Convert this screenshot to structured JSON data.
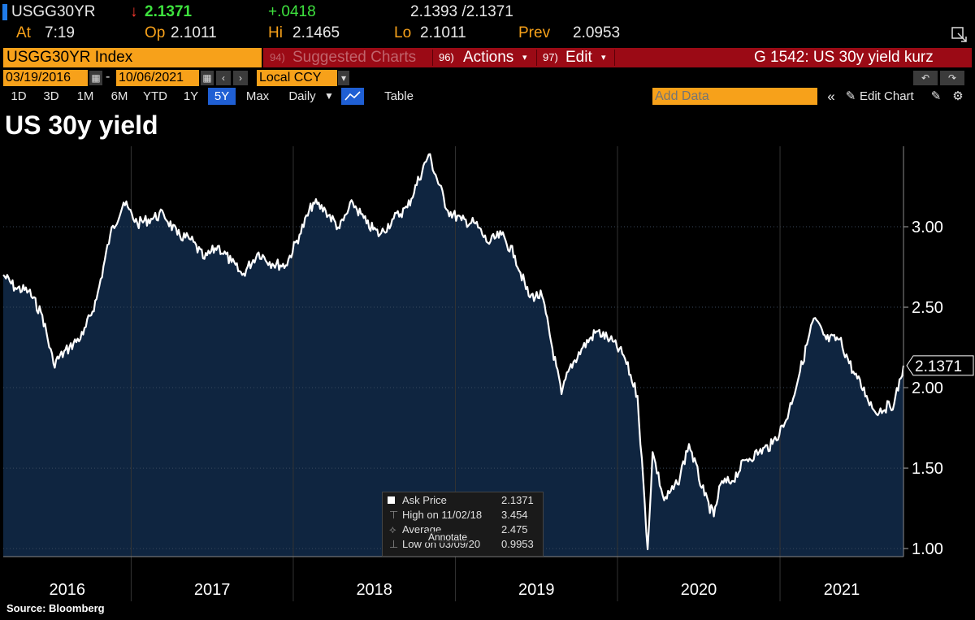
{
  "quote": {
    "ticker": "USGG30YR",
    "arrow": "↓",
    "last": "2.1371",
    "change": "+.0418",
    "bid_ask": "2.1393 /2.1371",
    "at_label": "At",
    "at_value": "7:19",
    "op_label": "Op",
    "op_value": "2.1011",
    "hi_label": "Hi",
    "hi_value": "2.1465",
    "lo_label": "Lo",
    "lo_value": "2.1011",
    "prev_label": "Prev",
    "prev_value": "2.0953"
  },
  "toolbar": {
    "security": "USGG30YR Index",
    "suggested_num": "94)",
    "suggested": "Suggested Charts",
    "actions_num": "96)",
    "actions": "Actions",
    "edit_num": "97)",
    "edit": "Edit",
    "chart_name": "G 1542: US 30y yield kurz",
    "start_date": "03/19/2016",
    "end_date": "10/06/2021",
    "dash": "-",
    "currency": "Local CCY",
    "ranges": [
      "1D",
      "3D",
      "1M",
      "6M",
      "YTD",
      "1Y",
      "5Y",
      "Max"
    ],
    "selected_range": "5Y",
    "periodicity": "Daily",
    "table": "Table",
    "add_data_placeholder": "Add Data",
    "edit_chart": "Edit Chart"
  },
  "legend": {
    "r1_label": "Ask Price",
    "r1_value": "2.1371",
    "r2_label": "High on 11/02/18",
    "r2_value": "3.454",
    "r3_label": "Average",
    "r3_value": "2.475",
    "r4_label": "Low on 03/09/20",
    "r4_value": "0.9953",
    "annotate": "Annotate"
  },
  "source": "Source: Bloomberg",
  "colors": {
    "orange": "#f7a11a",
    "red": "#9b0a15",
    "fill": "#0f2540",
    "line": "#ffffff"
  },
  "chart_data": {
    "type": "area",
    "title": "US 30y yield",
    "series": [
      {
        "name": "Ask Price",
        "x": [
          "2016-03-19",
          "2016-04-15",
          "2016-05-15",
          "2016-06-15",
          "2016-07-10",
          "2016-08-15",
          "2016-09-15",
          "2016-10-15",
          "2016-11-15",
          "2016-12-15",
          "2017-01-15",
          "2017-02-15",
          "2017-03-15",
          "2017-04-15",
          "2017-05-15",
          "2017-06-15",
          "2017-07-15",
          "2017-08-15",
          "2017-09-08",
          "2017-10-15",
          "2017-11-15",
          "2017-12-15",
          "2018-01-15",
          "2018-02-15",
          "2018-03-15",
          "2018-04-15",
          "2018-05-15",
          "2018-06-15",
          "2018-07-15",
          "2018-08-15",
          "2018-09-15",
          "2018-11-02",
          "2018-12-15",
          "2019-01-15",
          "2019-02-15",
          "2019-03-15",
          "2019-04-15",
          "2019-05-15",
          "2019-06-15",
          "2019-07-15",
          "2019-08-28",
          "2019-09-15",
          "2019-10-15",
          "2019-11-15",
          "2019-12-15",
          "2020-01-15",
          "2020-02-15",
          "2020-03-09",
          "2020-03-20",
          "2020-04-15",
          "2020-05-15",
          "2020-06-10",
          "2020-07-15",
          "2020-08-05",
          "2020-08-20",
          "2020-09-15",
          "2020-10-15",
          "2020-11-15",
          "2020-12-15",
          "2021-01-15",
          "2021-02-15",
          "2021-03-18",
          "2021-04-15",
          "2021-05-15",
          "2021-06-15",
          "2021-07-15",
          "2021-08-03",
          "2021-09-15",
          "2021-10-06"
        ],
        "values": [
          2.7,
          2.62,
          2.6,
          2.45,
          2.15,
          2.25,
          2.33,
          2.55,
          2.95,
          3.15,
          3.02,
          3.05,
          3.08,
          2.95,
          2.92,
          2.8,
          2.88,
          2.78,
          2.7,
          2.84,
          2.77,
          2.76,
          2.95,
          3.15,
          3.1,
          2.99,
          3.15,
          3.02,
          2.95,
          3.05,
          3.12,
          3.45,
          3.1,
          3.04,
          3.02,
          2.9,
          2.95,
          2.82,
          2.57,
          2.57,
          1.96,
          2.12,
          2.25,
          2.35,
          2.3,
          2.2,
          1.95,
          0.9953,
          1.6,
          1.3,
          1.4,
          1.65,
          1.33,
          1.2,
          1.4,
          1.42,
          1.55,
          1.6,
          1.65,
          1.8,
          2.1,
          2.43,
          2.3,
          2.3,
          2.1,
          1.95,
          1.85,
          1.9,
          2.1371
        ]
      }
    ],
    "xlabel": "",
    "ylabel": "",
    "xlim": [
      "2016-03-19",
      "2021-10-06"
    ],
    "ylim": [
      0.95,
      3.5
    ],
    "yticks": [
      1.0,
      1.5,
      2.0,
      2.5,
      3.0
    ],
    "ytick_labels": [
      "1.00",
      "1.50",
      "2.00",
      "2.50",
      "3.00"
    ],
    "xtick_labels": [
      "2016",
      "2017",
      "2018",
      "2019",
      "2020",
      "2021"
    ],
    "last_value_label": "2.1371",
    "source": "Source: Bloomberg"
  }
}
